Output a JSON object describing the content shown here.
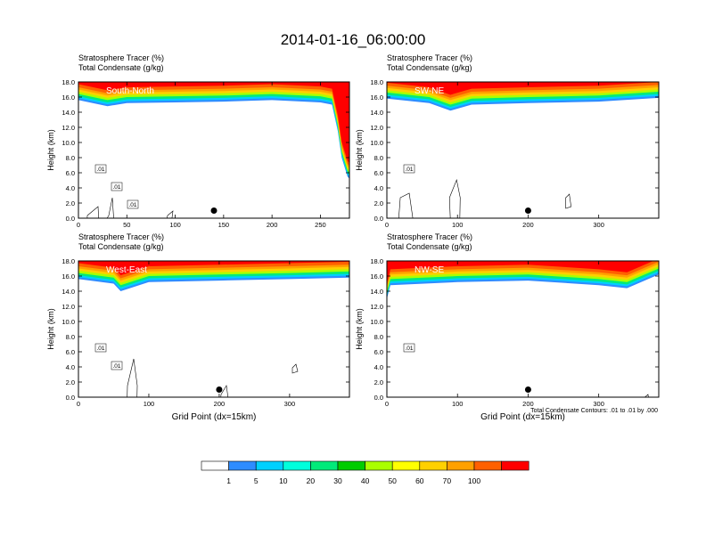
{
  "title": "2014-01-16_06:00:00",
  "panel_headers": {
    "field1": "Stratosphere Tracer",
    "unit1": "(%)",
    "field2": "Total Condensate",
    "unit2": "(g/kg)"
  },
  "colorbar": {
    "labels": [
      "1",
      "5",
      "10",
      "20",
      "30",
      "40",
      "50",
      "60",
      "70",
      "100"
    ],
    "colors": [
      "#ffffff",
      "#2e8cff",
      "#00d0ff",
      "#00ffdc",
      "#00ea7a",
      "#00cc00",
      "#aaff00",
      "#ffff00",
      "#ffd000",
      "#ffa000",
      "#ff6000",
      "#ff0000"
    ]
  },
  "contour_note": "Total Condensate Contours: .01 to .01 by .000",
  "chart_data": [
    {
      "type": "heatmap",
      "panel": "South-North",
      "ylabel": "Height (km)",
      "xlabel": "",
      "xlim": [
        0,
        280
      ],
      "ylim": [
        0,
        18
      ],
      "xticks": [
        "0",
        "50",
        "100",
        "150",
        "200",
        "250"
      ],
      "yticks": [
        "0.0",
        "2.0",
        "4.0",
        "6.0",
        "8.0",
        "10.0",
        "12.0",
        "14.0",
        "16.0",
        "18.0"
      ],
      "tropopause_km": [
        [
          0,
          15.6
        ],
        [
          30,
          14.8
        ],
        [
          50,
          15.2
        ],
        [
          100,
          15.3
        ],
        [
          150,
          15.4
        ],
        [
          200,
          15.6
        ],
        [
          250,
          15.3
        ],
        [
          262,
          15.0
        ],
        [
          268,
          11.5
        ],
        [
          272,
          8.0
        ],
        [
          278,
          5.5
        ],
        [
          280,
          5.2
        ]
      ],
      "contour_labels": [
        ".01",
        ".01",
        ".01"
      ],
      "marker": [
        140,
        1.0
      ]
    },
    {
      "type": "heatmap",
      "panel": "SW-NE",
      "ylabel": "Height (km)",
      "xlabel": "",
      "xlim": [
        0,
        385
      ],
      "ylim": [
        0,
        18
      ],
      "xticks": [
        "0",
        "100",
        "200",
        "300"
      ],
      "yticks": [
        "0.0",
        "2.0",
        "4.0",
        "6.0",
        "8.0",
        "10.0",
        "12.0",
        "14.0",
        "16.0",
        "18.0"
      ],
      "tropopause_km": [
        [
          0,
          15.8
        ],
        [
          60,
          15.2
        ],
        [
          90,
          14.2
        ],
        [
          120,
          15.0
        ],
        [
          200,
          15.2
        ],
        [
          300,
          15.4
        ],
        [
          385,
          15.9
        ]
      ],
      "contour_labels": [
        ".01"
      ],
      "marker": [
        200,
        1.0
      ]
    },
    {
      "type": "heatmap",
      "panel": "West-East",
      "ylabel": "Height (km)",
      "xlabel": "Grid Point (dx=15km)",
      "xlim": [
        0,
        385
      ],
      "ylim": [
        0,
        18
      ],
      "xticks": [
        "0",
        "100",
        "200",
        "300"
      ],
      "yticks": [
        "0.0",
        "2.0",
        "4.0",
        "6.0",
        "8.0",
        "10.0",
        "12.0",
        "14.0",
        "16.0",
        "18.0"
      ],
      "tropopause_km": [
        [
          0,
          15.6
        ],
        [
          50,
          15.0
        ],
        [
          60,
          14.0
        ],
        [
          100,
          15.2
        ],
        [
          200,
          15.4
        ],
        [
          300,
          15.6
        ],
        [
          385,
          15.8
        ]
      ],
      "contour_labels": [
        ".01",
        ".01"
      ],
      "marker": [
        200,
        1.0
      ]
    },
    {
      "type": "heatmap",
      "panel": "NW-SE",
      "ylabel": "Height (km)",
      "xlabel": "Grid Point (dx=15km)",
      "xlim": [
        0,
        385
      ],
      "ylim": [
        0,
        18
      ],
      "xticks": [
        "0",
        "100",
        "200",
        "300"
      ],
      "yticks": [
        "0.0",
        "2.0",
        "4.0",
        "6.0",
        "8.0",
        "10.0",
        "12.0",
        "14.0",
        "16.0",
        "18.0"
      ],
      "tropopause_km": [
        [
          0,
          13.0
        ],
        [
          5,
          14.8
        ],
        [
          100,
          15.2
        ],
        [
          200,
          15.4
        ],
        [
          300,
          14.8
        ],
        [
          340,
          14.4
        ],
        [
          385,
          16.2
        ]
      ],
      "contour_labels": [
        ".01"
      ],
      "marker": [
        200,
        1.0
      ]
    }
  ]
}
